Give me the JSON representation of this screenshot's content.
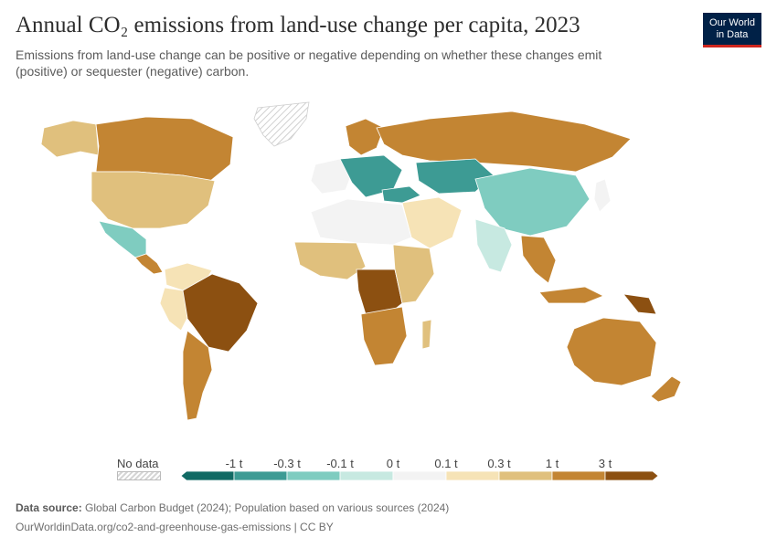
{
  "header": {
    "title": "Annual CO₂ emissions from land-use change per capita, 2023",
    "subtitle": "Emissions from land-use change can be positive or negative depending on whether these changes emit (positive) or sequester (negative) carbon."
  },
  "logo": {
    "line1": "Our World",
    "line2": "in Data"
  },
  "legend": {
    "no_data_label": "No data",
    "ticks": [
      "-1 t",
      "-0.3 t",
      "-0.1 t",
      "0 t",
      "0.1 t",
      "0.3 t",
      "1 t",
      "3 t"
    ],
    "bins": [
      {
        "range": "< -1 t",
        "color": "#116a64"
      },
      {
        "range": "-1 to -0.3 t",
        "color": "#3d9b94"
      },
      {
        "range": "-0.3 to -0.1 t",
        "color": "#7fccc0"
      },
      {
        "range": "-0.1 to 0 t",
        "color": "#c7e9e1"
      },
      {
        "range": "0 to 0.1 t",
        "color": "#f3f3f3"
      },
      {
        "range": "0.1 to 0.3 t",
        "color": "#f6e3b6"
      },
      {
        "range": "0.3 to 1 t",
        "color": "#e0c07d"
      },
      {
        "range": "1 to 3 t",
        "color": "#c38533"
      },
      {
        "range": "> 3 t",
        "color": "#8c5011"
      }
    ],
    "no_data_color": "#d9d9d9"
  },
  "footer": {
    "source_label": "Data source:",
    "source_text": "Global Carbon Budget (2024); Population based on various sources (2024)",
    "url_text": "OurWorldinData.org/co2-and-greenhouse-gas-emissions | CC BY"
  }
}
